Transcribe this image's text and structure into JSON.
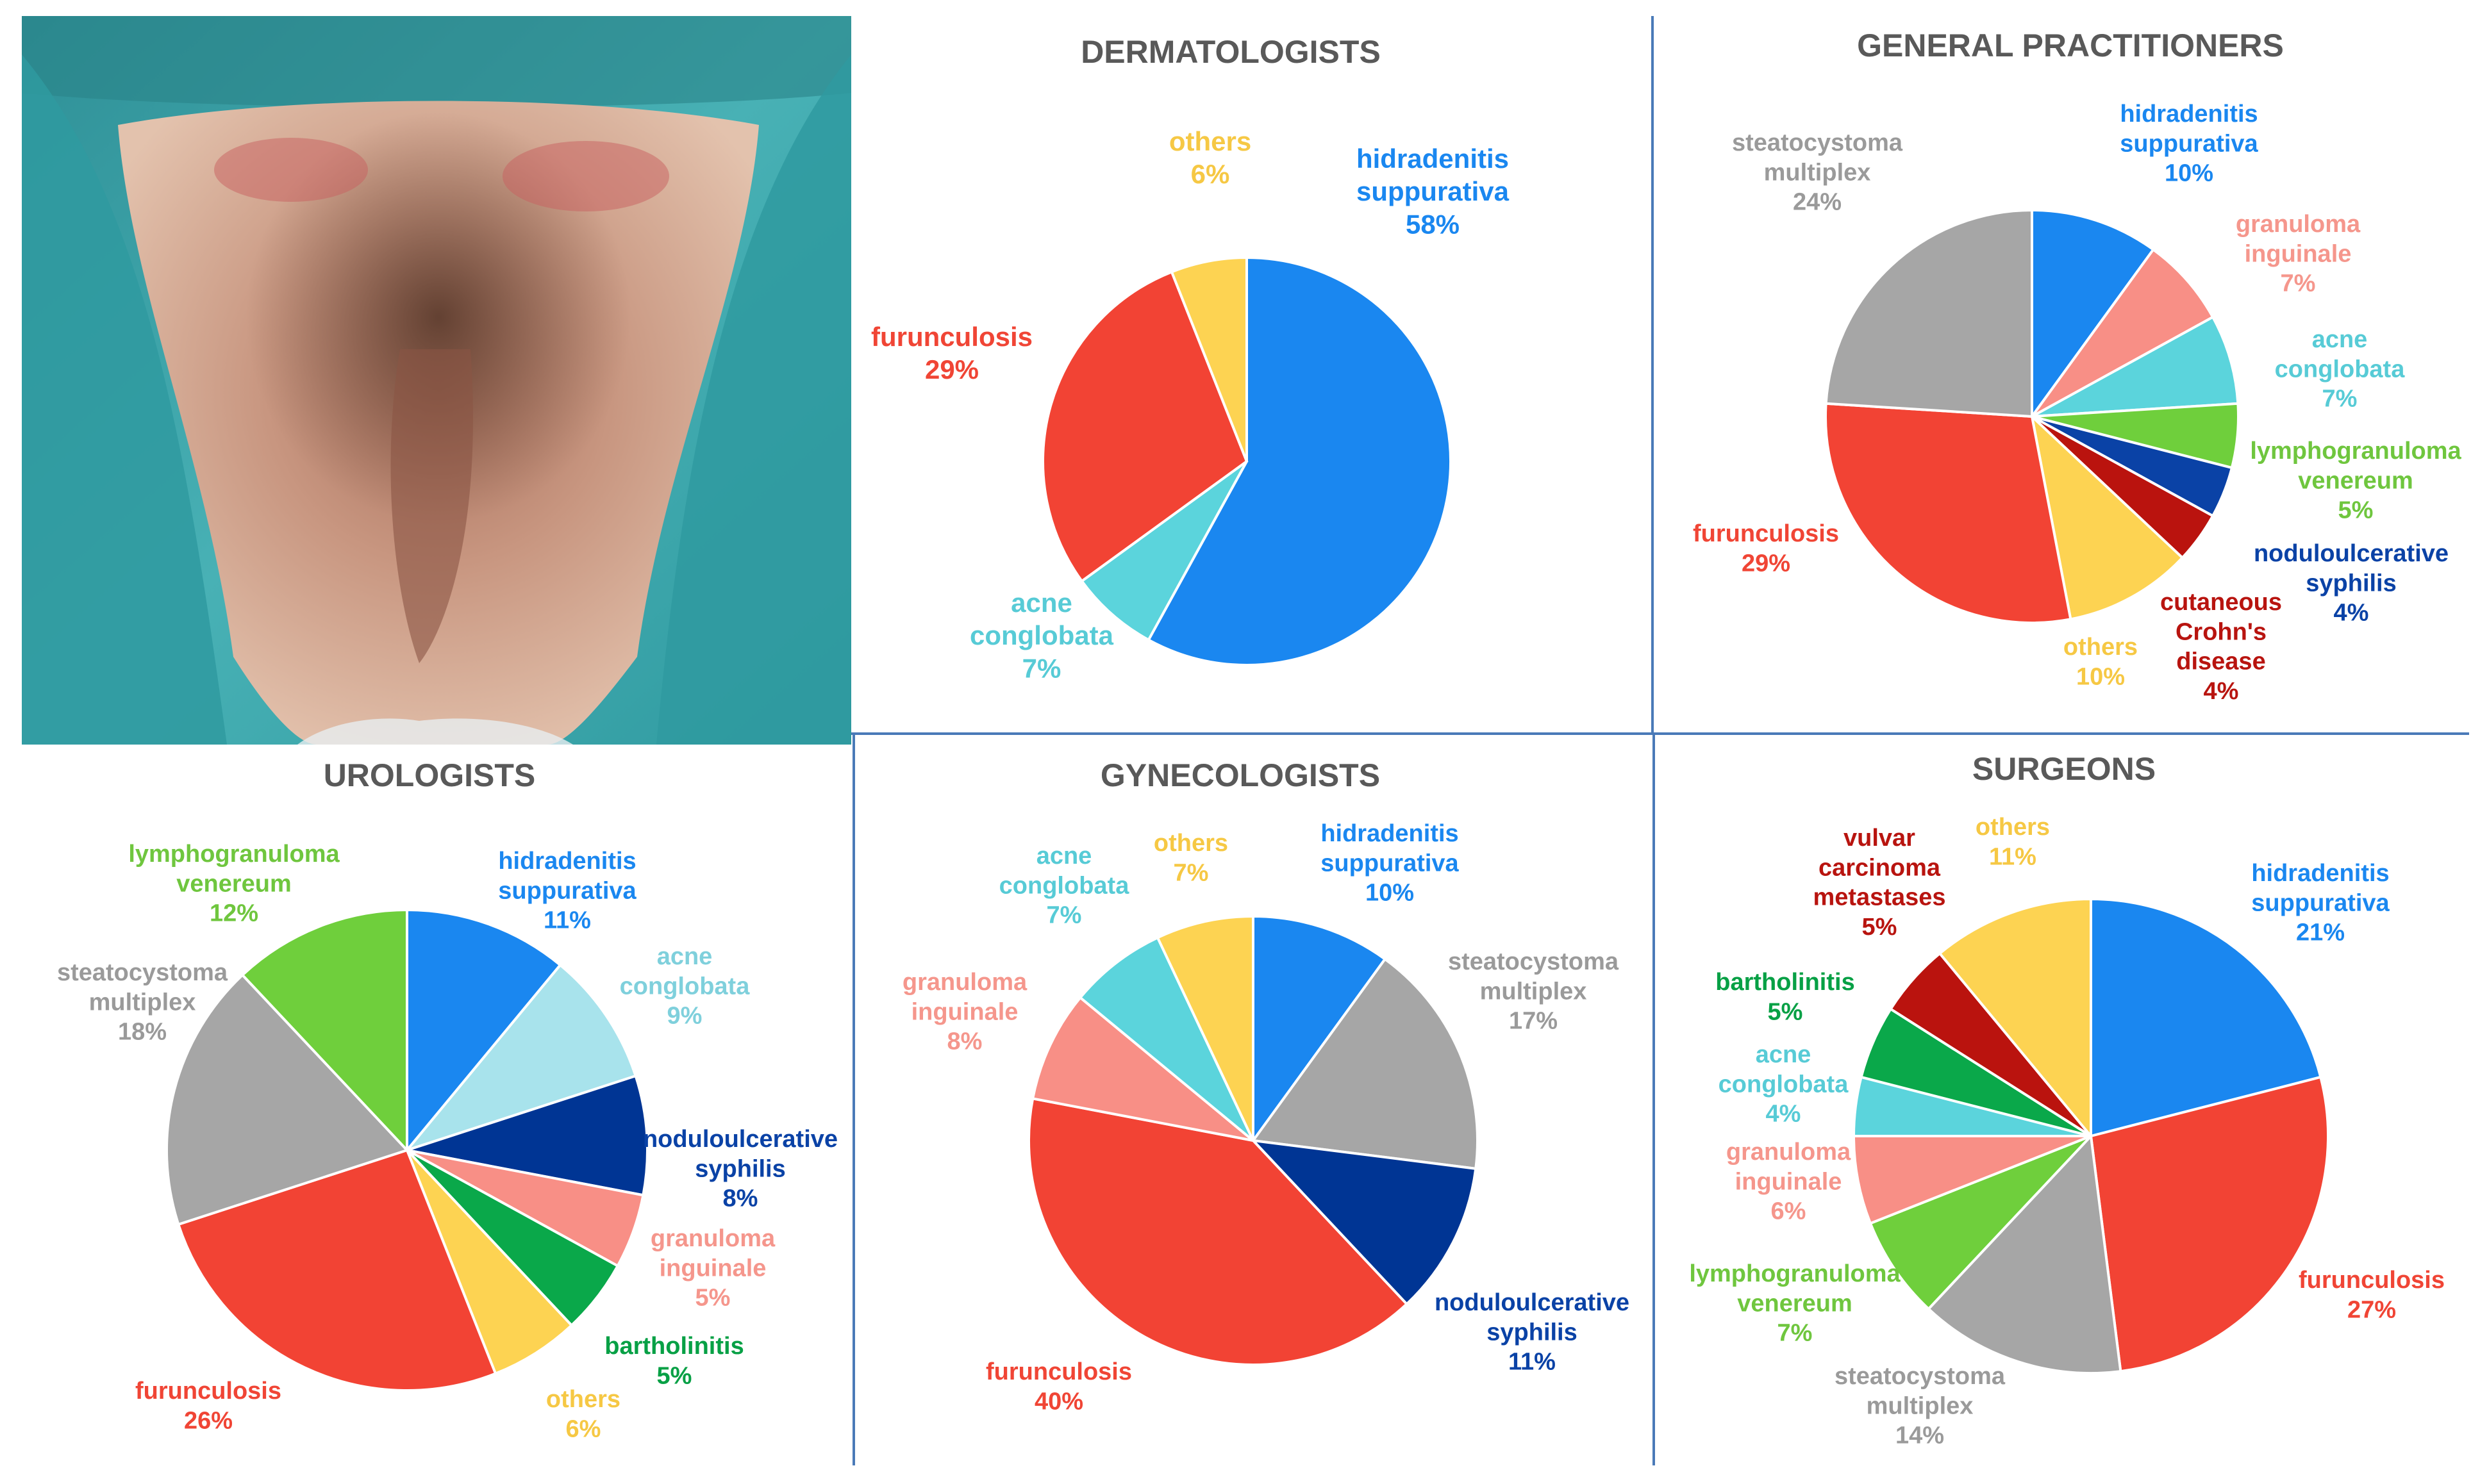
{
  "chart_data": [
    {
      "type": "pie",
      "title": "DERMATOLOGISTS",
      "slices": [
        {
          "label": "hidradenitis suppurativa",
          "value": 58,
          "display": "58%",
          "color": "#1a87f0"
        },
        {
          "label": "acne conglobata",
          "value": 7,
          "display": "7%",
          "color": "#5bd4dc"
        },
        {
          "label": "furunculosis",
          "value": 29,
          "display": "29%",
          "color": "#f24334"
        },
        {
          "label": "others",
          "value": 6,
          "display": "6%",
          "color": "#fdd352"
        }
      ]
    },
    {
      "type": "pie",
      "title": "GENERAL PRACTITIONERS",
      "slices": [
        {
          "label": "hidradenitis suppurativa",
          "value": 10,
          "display": "10%",
          "color": "#1a87f0"
        },
        {
          "label": "granuloma inguinale",
          "value": 7,
          "display": "7%",
          "color": "#f88f86"
        },
        {
          "label": "acne conglobata",
          "value": 7,
          "display": "7%",
          "color": "#5bd4dc"
        },
        {
          "label": "lymphogranuloma venereum",
          "value": 5,
          "display": "5%",
          "color": "#6fcf3c"
        },
        {
          "label": "noduloulcerative syphilis",
          "value": 4,
          "display": "4%",
          "color": "#0a42a6"
        },
        {
          "label": "cutaneous Crohn's disease",
          "value": 4,
          "display": "4%",
          "color": "#ba130e"
        },
        {
          "label": "others",
          "value": 10,
          "display": "10%",
          "color": "#fdd352"
        },
        {
          "label": "furunculosis",
          "value": 29,
          "display": "29%",
          "color": "#f24334"
        },
        {
          "label": "steatocystoma multiplex",
          "value": 24,
          "display": "24%",
          "color": "#a6a6a6"
        }
      ]
    },
    {
      "type": "pie",
      "title": "UROLOGISTS",
      "slices": [
        {
          "label": "hidradenitis suppurativa",
          "value": 11,
          "display": "11%",
          "color": "#1a87f0"
        },
        {
          "label": "acne conglobata",
          "value": 9,
          "display": "9%",
          "color": "#a8e3ec"
        },
        {
          "label": "noduloulcerative syphilis",
          "value": 8,
          "display": "8%",
          "color": "#003594"
        },
        {
          "label": "granuloma inguinale",
          "value": 5,
          "display": "5%",
          "color": "#f88f86"
        },
        {
          "label": "bartholinitis",
          "value": 5,
          "display": "5%",
          "color": "#0aa84a"
        },
        {
          "label": "others",
          "value": 6,
          "display": "6%",
          "color": "#fdd352"
        },
        {
          "label": "furunculosis",
          "value": 26,
          "display": "26%",
          "color": "#f24334"
        },
        {
          "label": "steatocystoma multiplex",
          "value": 18,
          "display": "18%",
          "color": "#a6a6a6"
        },
        {
          "label": "lymphogranuloma venereum",
          "value": 12,
          "display": "12%",
          "color": "#6fcf3c"
        }
      ]
    },
    {
      "type": "pie",
      "title": "GYNECOLOGISTS",
      "slices": [
        {
          "label": "hidradenitis suppurativa",
          "value": 10,
          "display": "10%",
          "color": "#1a87f0"
        },
        {
          "label": "steatocystoma multiplex",
          "value": 17,
          "display": "17%",
          "color": "#a6a6a6"
        },
        {
          "label": "noduloulcerative syphilis",
          "value": 11,
          "display": "11%",
          "color": "#003594"
        },
        {
          "label": "furunculosis",
          "value": 40,
          "display": "40%",
          "color": "#f24334"
        },
        {
          "label": "granuloma inguinale",
          "value": 8,
          "display": "8%",
          "color": "#f88f86"
        },
        {
          "label": "acne conglobata",
          "value": 7,
          "display": "7%",
          "color": "#5bd4dc"
        },
        {
          "label": "others",
          "value": 7,
          "display": "7%",
          "color": "#fdd352"
        }
      ]
    },
    {
      "type": "pie",
      "title": "SURGEONS",
      "slices": [
        {
          "label": "hidradenitis suppurativa",
          "value": 21,
          "display": "21%",
          "color": "#1a87f0"
        },
        {
          "label": "furunculosis",
          "value": 27,
          "display": "27%",
          "color": "#f24334"
        },
        {
          "label": "steatocystoma multiplex",
          "value": 14,
          "display": "14%",
          "color": "#a6a6a6"
        },
        {
          "label": "lymphogranuloma venereum",
          "value": 7,
          "display": "7%",
          "color": "#6fcf3c"
        },
        {
          "label": "granuloma inguinale",
          "value": 6,
          "display": "6%",
          "color": "#f88f86"
        },
        {
          "label": "acne conglobata",
          "value": 4,
          "display": "4%",
          "color": "#5bd4dc"
        },
        {
          "label": "bartholinitis",
          "value": 5,
          "display": "5%",
          "color": "#0aa84a"
        },
        {
          "label": "vulvar carcinoma metastases",
          "value": 5,
          "display": "5%",
          "color": "#ba130e"
        },
        {
          "label": "others",
          "value": 11,
          "display": "11%",
          "color": "#fdd352"
        }
      ]
    }
  ],
  "colors": {
    "divider": "#4a7ab8",
    "title": "#595959",
    "drape": "#3fa6ab",
    "skin": "#d2a58d"
  },
  "icons": {
    "photo": "clinical-photo"
  }
}
